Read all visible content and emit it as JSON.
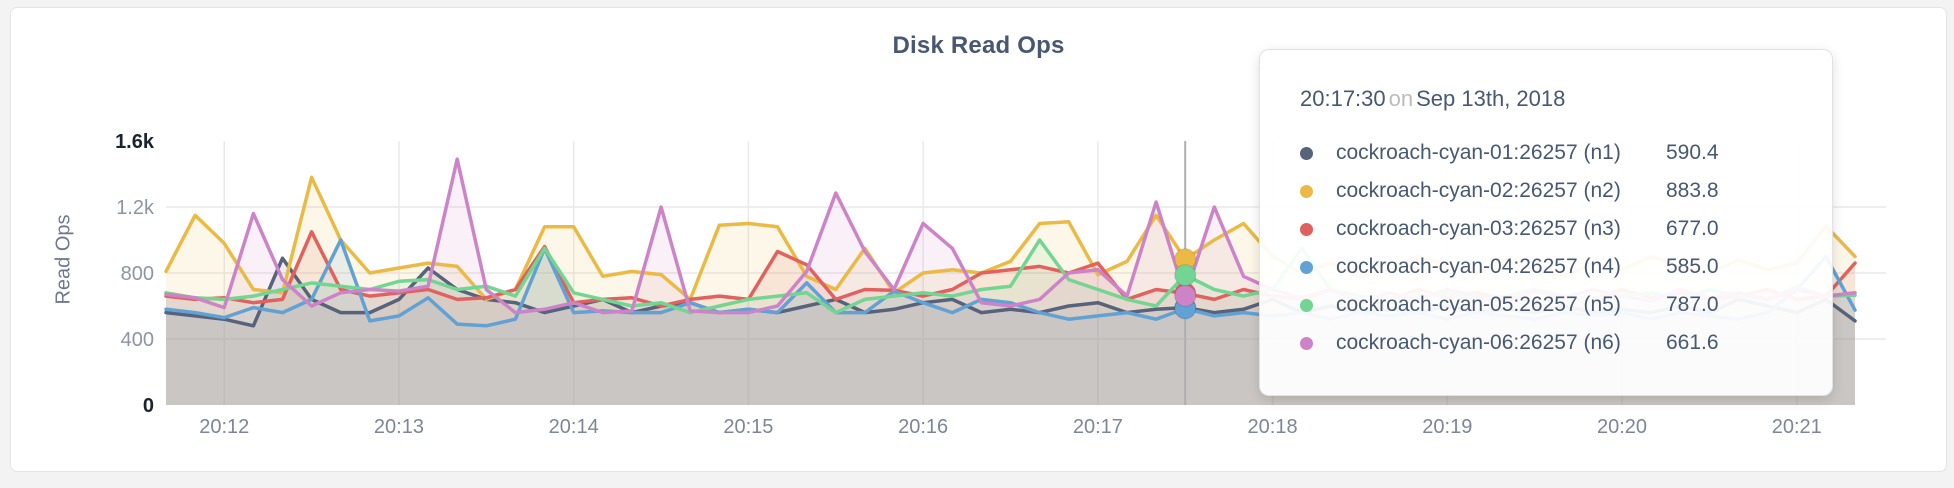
{
  "card": {
    "title": "Disk Read Ops"
  },
  "chart_data": {
    "type": "line",
    "title": "Disk Read Ops",
    "ylabel": "Read Ops",
    "ylim": [
      0,
      1600
    ],
    "x_start": "20:11:40",
    "x_end": "20:21:20",
    "sample_interval_seconds": 10,
    "grid": true,
    "y_ticks": [
      {
        "label": "1.6k",
        "value": 1600,
        "strong": true,
        "grid": false
      },
      {
        "label": "1.2k",
        "value": 1200,
        "strong": false,
        "grid": true
      },
      {
        "label": "800",
        "value": 800,
        "strong": false,
        "grid": true
      },
      {
        "label": "400",
        "value": 400,
        "strong": false,
        "grid": true
      },
      {
        "label": "0",
        "value": 0,
        "strong": true,
        "grid": false
      }
    ],
    "x_ticks": [
      {
        "label": "20:12",
        "t": 20
      },
      {
        "label": "20:13",
        "t": 80
      },
      {
        "label": "20:14",
        "t": 140
      },
      {
        "label": "20:15",
        "t": 200
      },
      {
        "label": "20:16",
        "t": 260
      },
      {
        "label": "20:17",
        "t": 320
      },
      {
        "label": "20:18",
        "t": 380
      },
      {
        "label": "20:19",
        "t": 440
      },
      {
        "label": "20:20",
        "t": 500
      },
      {
        "label": "20:21",
        "t": 560
      }
    ],
    "hover": {
      "index": 35,
      "time": "20:17:30"
    },
    "series": [
      {
        "id": "n1",
        "name": "cockroach-cyan-01:26257 (n1)",
        "color": "#57627b",
        "values": [
          560,
          540,
          520,
          480,
          890,
          640,
          560,
          560,
          640,
          830,
          700,
          640,
          620,
          560,
          600,
          640,
          560,
          600,
          620,
          560,
          580,
          560,
          600,
          640,
          560,
          580,
          620,
          640,
          560,
          580,
          560,
          600,
          620,
          560,
          580,
          590.4,
          560,
          580,
          640,
          560,
          600,
          560,
          580,
          560,
          600,
          560,
          580,
          560,
          600,
          560,
          580,
          560,
          600,
          560,
          640,
          600,
          560,
          640,
          510
        ]
      },
      {
        "id": "n2",
        "name": "cockroach-cyan-02:26257 (n2)",
        "color": "#eaba45",
        "values": [
          810,
          1150,
          980,
          700,
          680,
          1380,
          1000,
          800,
          830,
          860,
          840,
          640,
          700,
          1080,
          1080,
          780,
          810,
          790,
          640,
          1090,
          1100,
          1080,
          780,
          700,
          950,
          680,
          800,
          820,
          800,
          870,
          1100,
          1110,
          790,
          870,
          1150,
          883.8,
          1000,
          1100,
          900,
          800,
          860,
          780,
          820,
          900,
          850,
          800,
          880,
          820,
          780,
          860,
          820,
          900,
          840,
          800,
          880,
          820,
          860,
          1085,
          900
        ]
      },
      {
        "id": "n3",
        "name": "cockroach-cyan-03:26257 (n3)",
        "color": "#e0615d",
        "values": [
          660,
          640,
          650,
          620,
          640,
          1050,
          700,
          660,
          680,
          700,
          640,
          650,
          700,
          960,
          620,
          640,
          650,
          600,
          640,
          660,
          640,
          930,
          850,
          640,
          700,
          695,
          660,
          700,
          800,
          820,
          840,
          800,
          860,
          640,
          700,
          677,
          640,
          700,
          660,
          640,
          700,
          660,
          640,
          700,
          650,
          680,
          640,
          700,
          660,
          640,
          700,
          650,
          680,
          640,
          660,
          700,
          640,
          660,
          860
        ]
      },
      {
        "id": "n4",
        "name": "cockroach-cyan-04:26257 (n4)",
        "color": "#61a1d4",
        "values": [
          580,
          560,
          530,
          590,
          560,
          640,
          1000,
          510,
          540,
          650,
          490,
          480,
          520,
          950,
          560,
          570,
          560,
          560,
          620,
          560,
          580,
          560,
          740,
          560,
          560,
          690,
          620,
          560,
          640,
          620,
          560,
          520,
          540,
          560,
          520,
          585,
          540,
          560,
          540,
          560,
          520,
          560,
          540,
          560,
          520,
          560,
          540,
          520,
          560,
          540,
          560,
          520,
          560,
          540,
          520,
          560,
          700,
          900,
          575
        ]
      },
      {
        "id": "n5",
        "name": "cockroach-cyan-05:26257 (n5)",
        "color": "#72d591",
        "values": [
          680,
          650,
          640,
          660,
          700,
          740,
          720,
          700,
          750,
          760,
          700,
          720,
          660,
          950,
          680,
          640,
          600,
          620,
          560,
          600,
          640,
          660,
          680,
          560,
          640,
          660,
          680,
          660,
          700,
          720,
          1000,
          760,
          700,
          640,
          600,
          787,
          700,
          660,
          700,
          950,
          700,
          660,
          640,
          660,
          680,
          640,
          660,
          700,
          660,
          640,
          660,
          680,
          640,
          700,
          660,
          640,
          715,
          660,
          665
        ]
      },
      {
        "id": "n6",
        "name": "cockroach-cyan-06:26257 (n6)",
        "color": "#cd83c8",
        "values": [
          670,
          650,
          590,
          1160,
          760,
          600,
          680,
          700,
          690,
          720,
          1490,
          700,
          560,
          580,
          620,
          560,
          570,
          1200,
          570,
          560,
          560,
          600,
          810,
          1285,
          930,
          700,
          1100,
          950,
          620,
          600,
          640,
          800,
          820,
          660,
          1230,
          661.6,
          1200,
          780,
          700,
          650,
          700,
          620,
          680,
          640,
          700,
          660,
          620,
          690,
          650,
          700,
          660,
          630,
          700,
          650,
          680,
          640,
          700,
          660,
          680
        ]
      }
    ]
  },
  "tooltip": {
    "time": "20:17:30",
    "separator": "on",
    "date": "Sep 13th, 2018",
    "rows": [
      {
        "series": "n1",
        "value": "590.4"
      },
      {
        "series": "n2",
        "value": "883.8"
      },
      {
        "series": "n3",
        "value": "677.0"
      },
      {
        "series": "n4",
        "value": "585.0"
      },
      {
        "series": "n5",
        "value": "787.0"
      },
      {
        "series": "n6",
        "value": "661.6"
      }
    ]
  }
}
